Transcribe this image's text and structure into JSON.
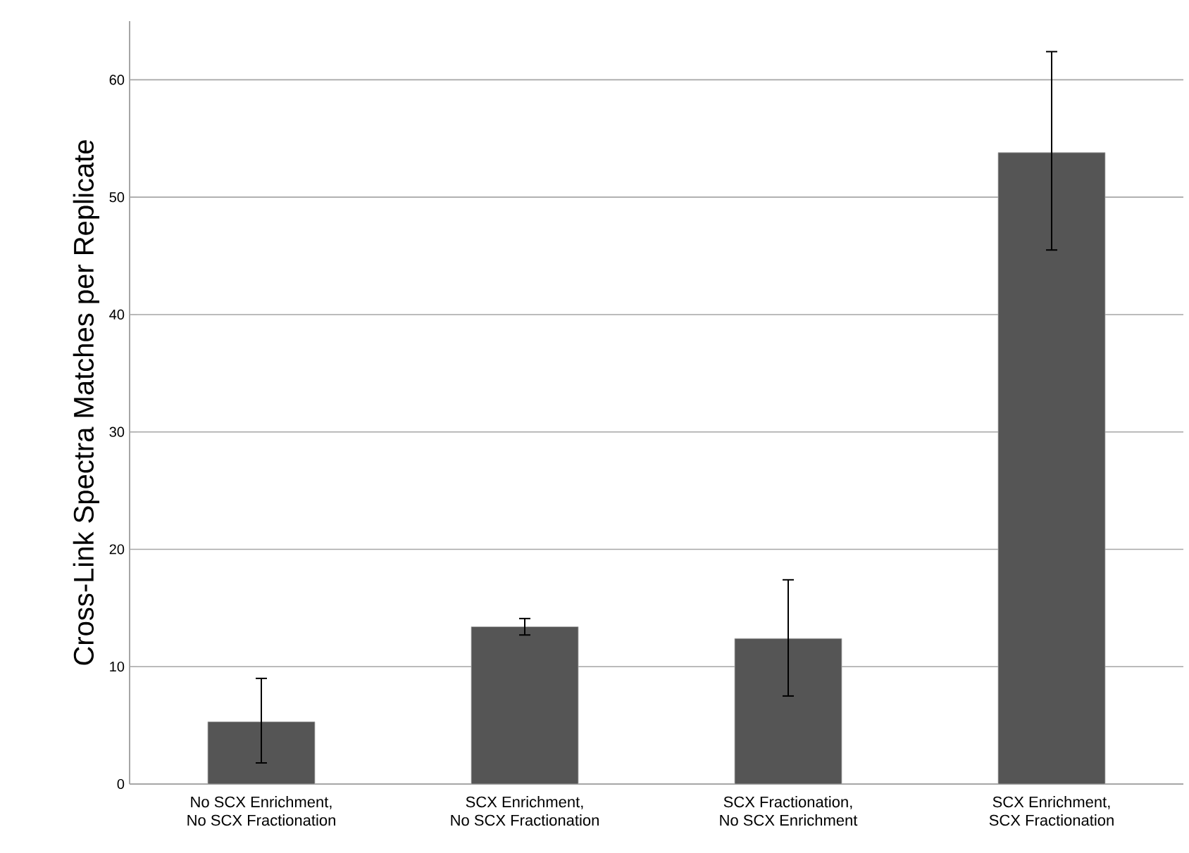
{
  "chart_data": {
    "type": "bar",
    "ylabel": "Cross-Link Spectra Matches per Replicate",
    "categories": [
      "No SCX Enrichment,\nNo SCX Fractionation",
      "SCX Enrichment,\nNo SCX Fractionation",
      "SCX Fractionation,\nNo SCX Enrichment",
      "SCX Enrichment,\nSCX Fractionation"
    ],
    "values": [
      5.3,
      13.4,
      12.4,
      53.8
    ],
    "errors": [
      [
        1.8,
        9.0
      ],
      [
        12.7,
        14.1
      ],
      [
        7.5,
        17.4
      ],
      [
        45.5,
        62.4
      ]
    ],
    "color": "#555555",
    "ylim": [
      0,
      65
    ],
    "yticks": [
      0,
      10,
      20,
      30,
      40,
      50,
      60
    ],
    "grid": "y"
  }
}
